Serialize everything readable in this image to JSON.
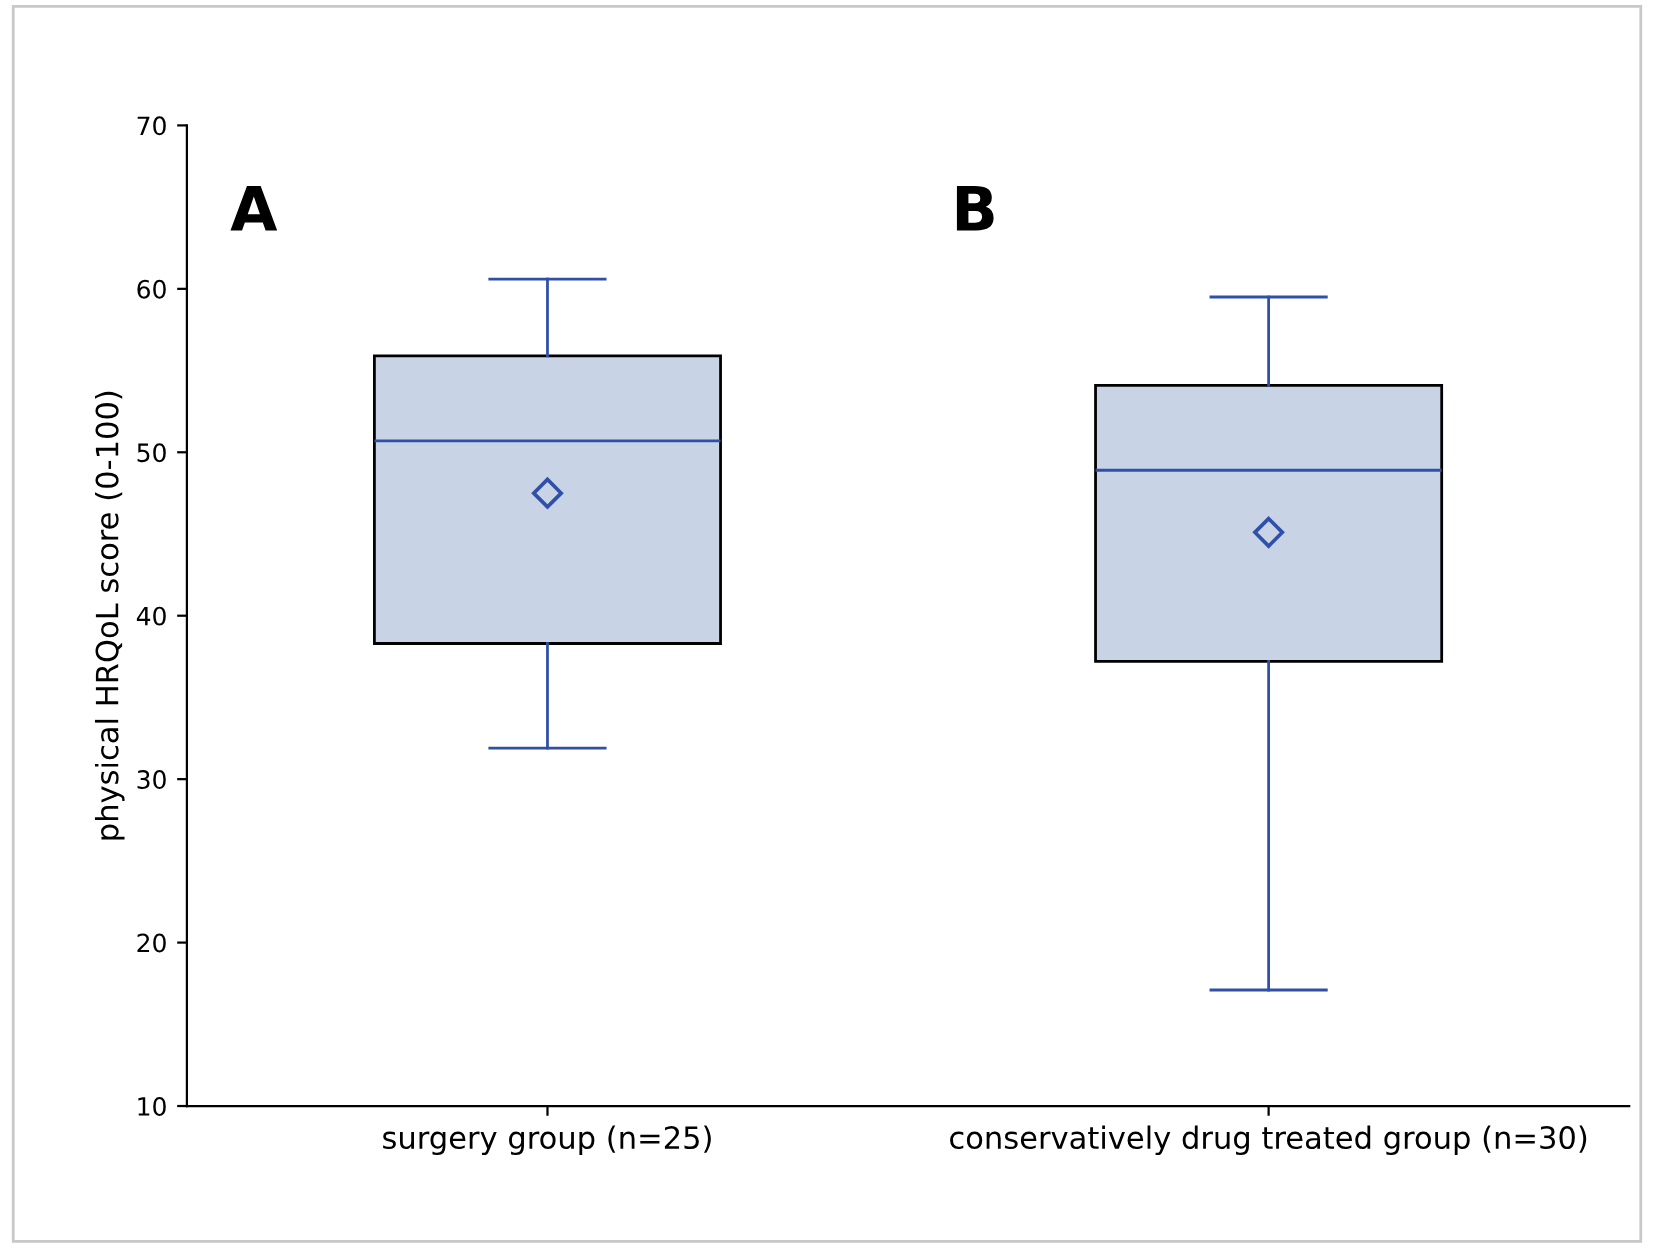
{
  "chart_data": {
    "type": "box",
    "ylabel": "physical HRQoL score (0-100)",
    "categories": [
      "surgery group (n=25)",
      "conservatively drug treated group (n=30)"
    ],
    "boxes": [
      {
        "low": 31.9,
        "q1": 38.3,
        "median": 50.7,
        "q3": 55.9,
        "high": 60.6,
        "mean": 47.5
      },
      {
        "low": 17.1,
        "q1": 37.2,
        "median": 48.9,
        "q3": 54.1,
        "high": 59.5,
        "mean": 45.1
      }
    ],
    "color": "#c8d4e6",
    "ylim": [
      10,
      70
    ],
    "yticks": [
      10,
      20,
      30,
      40,
      50,
      60,
      70
    ],
    "grid": false,
    "marker": "diamond",
    "annotations": [
      "A",
      "B"
    ]
  }
}
